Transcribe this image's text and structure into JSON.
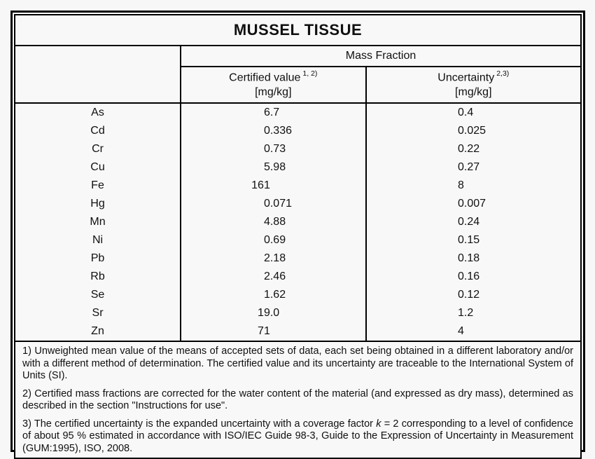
{
  "title": "MUSSEL TISSUE",
  "table": {
    "group_header": "Mass Fraction",
    "columns": [
      {
        "label": "Certified value",
        "footnote_refs": "1, 2)",
        "unit": "[mg/kg]"
      },
      {
        "label": "Uncertainty",
        "footnote_refs": "2,3)",
        "unit": "[mg/kg]"
      }
    ],
    "rows": [
      {
        "element": "As",
        "certified_value": "6.7",
        "uncertainty": "0.4"
      },
      {
        "element": "Cd",
        "certified_value": "0.336",
        "uncertainty": "0.025"
      },
      {
        "element": "Cr",
        "certified_value": "0.73",
        "uncertainty": "0.22"
      },
      {
        "element": "Cu",
        "certified_value": "5.98",
        "uncertainty": "0.27"
      },
      {
        "element": "Fe",
        "certified_value": "161",
        "uncertainty": "8"
      },
      {
        "element": "Hg",
        "certified_value": "0.071",
        "uncertainty": "0.007"
      },
      {
        "element": "Mn",
        "certified_value": "4.88",
        "uncertainty": "0.24"
      },
      {
        "element": "Ni",
        "certified_value": "0.69",
        "uncertainty": "0.15"
      },
      {
        "element": "Pb",
        "certified_value": "2.18",
        "uncertainty": "0.18"
      },
      {
        "element": "Rb",
        "certified_value": "2.46",
        "uncertainty": "0.16"
      },
      {
        "element": "Se",
        "certified_value": "1.62",
        "uncertainty": "0.12"
      },
      {
        "element": "Sr",
        "certified_value": "19.0",
        "uncertainty": "1.2"
      },
      {
        "element": "Zn",
        "certified_value": "71",
        "uncertainty": "4"
      }
    ]
  },
  "footnotes": [
    [
      {
        "text": "1) Unweighted mean value of the means of accepted sets of data, each set being obtained in a different laboratory and/or with a different method of determination. The certified value and its uncertainty are traceable to the International System of Units (SI).",
        "italic": false
      }
    ],
    [
      {
        "text": "2) Certified mass fractions are corrected for the water content of the material (and expressed as dry mass), determined as described in the section \"Instructions for use\".",
        "italic": false
      }
    ],
    [
      {
        "text": "3) The certified uncertainty is the expanded uncertainty with a coverage factor ",
        "italic": false
      },
      {
        "text": "k",
        "italic": true
      },
      {
        "text": " = 2 corresponding to a level of confidence of about 95 % estimated in accordance with ISO/IEC Guide 98-3, Guide to the Expression of Uncertainty in Measurement (GUM:1995), ISO, 2008.",
        "italic": false
      }
    ]
  ],
  "colors": {
    "border": "#000000",
    "text": "#101010",
    "background": "#f8f8f8"
  }
}
